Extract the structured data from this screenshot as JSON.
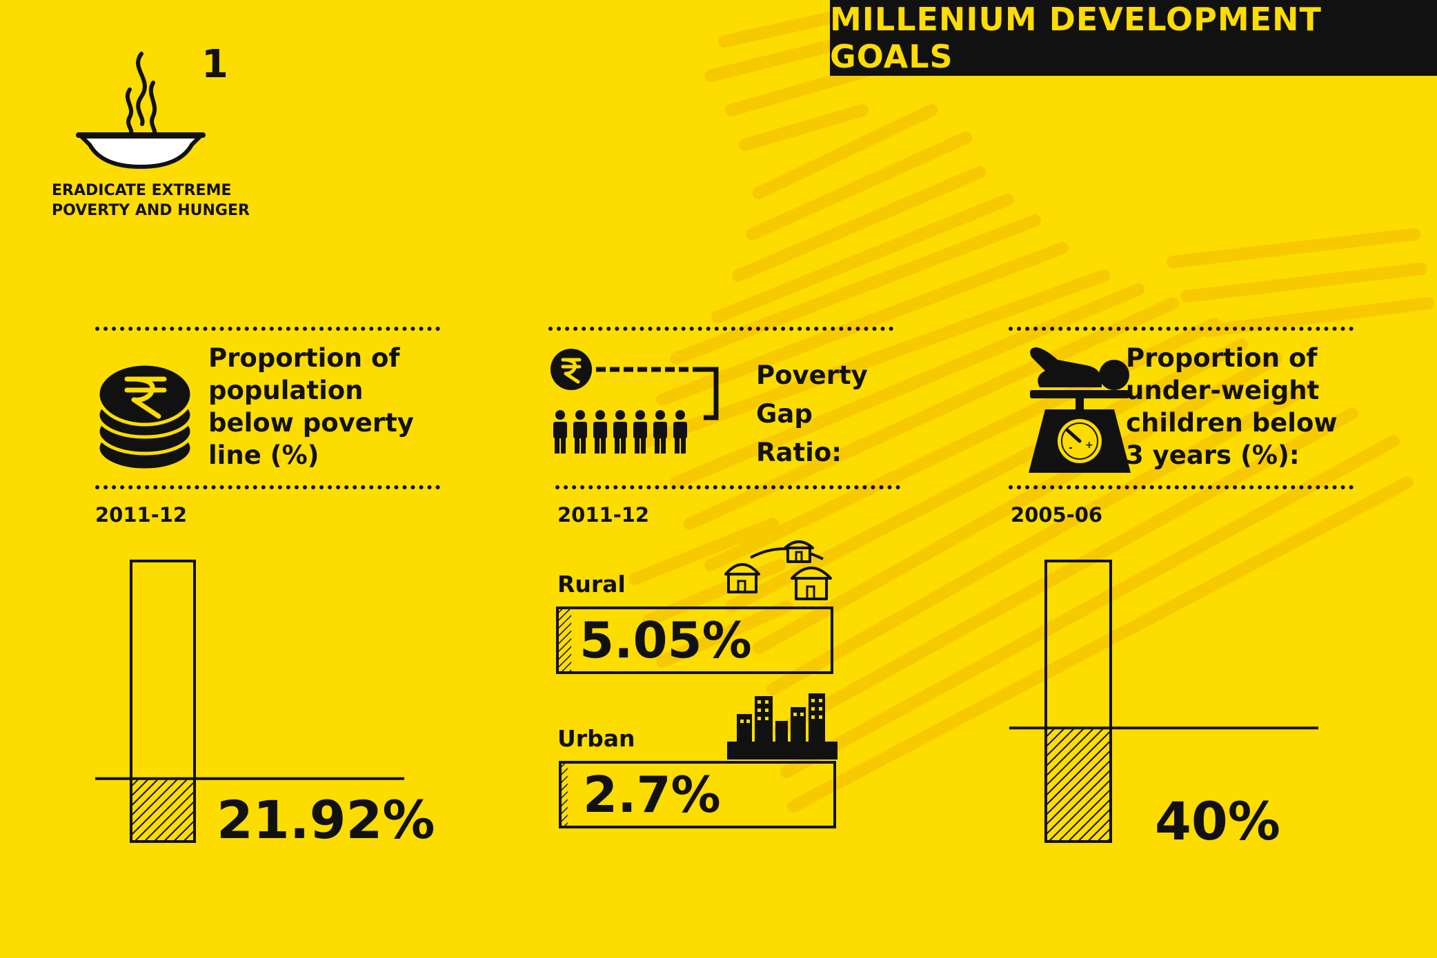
{
  "banner": {
    "title": "MILLENIUM DEVELOPMENT GOALS"
  },
  "goal": {
    "number": "1",
    "text_line1": "ERADICATE EXTREME",
    "text_line2": "POVERTY AND HUNGER",
    "icon": "steaming-bowl-icon"
  },
  "colors": {
    "background": "#FDDC00",
    "ink": "#111111",
    "texture": "#F5C400"
  },
  "panels": {
    "poverty_line": {
      "icon": "rupee-coins-icon",
      "heading": [
        "Proportion of",
        "population",
        "below poverty",
        "line (%)"
      ],
      "year": "2011-12",
      "value_text": "21.92%",
      "value": 21.92
    },
    "poverty_gap": {
      "icon": "rupee-people-icon",
      "heading": [
        "Poverty",
        "Gap",
        "Ratio:"
      ],
      "year": "2011-12",
      "rural": {
        "label": "Rural",
        "value_text": "5.05%",
        "value": 5.05,
        "icon": "huts-icon"
      },
      "urban": {
        "label": "Urban",
        "value_text": "2.7%",
        "value": 2.7,
        "icon": "city-skyline-icon"
      }
    },
    "underweight": {
      "icon": "baby-scale-icon",
      "heading": [
        "Proportion of",
        "under-weight",
        "children below",
        "3 years (%):"
      ],
      "year": "2005-06",
      "value_text": "40%",
      "value": 40
    }
  }
}
